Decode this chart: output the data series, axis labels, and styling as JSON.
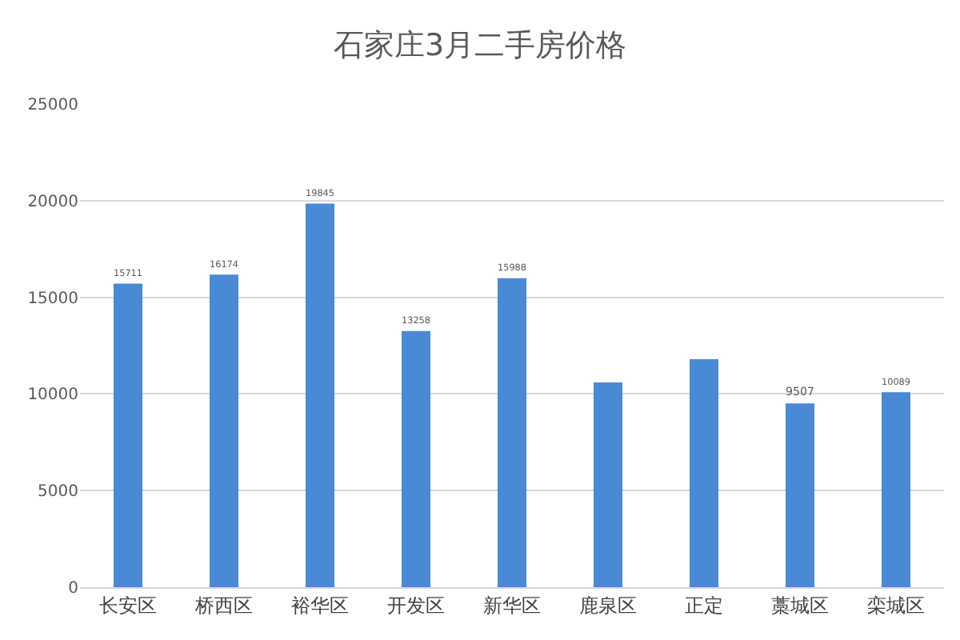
{
  "chart_data": {
    "type": "bar",
    "title": "石家庄3月二手房价格",
    "categories": [
      "长安区",
      "桥西区",
      "裕华区",
      "开发区",
      "新华区",
      "鹿泉区",
      "正定",
      "藁城区",
      "栾城区"
    ],
    "values": [
      15711,
      16174,
      19845,
      13258,
      15988,
      10600,
      11800,
      9507,
      10089
    ],
    "value_labels": [
      "15711",
      "16174",
      "19845",
      "13258",
      "15988",
      null,
      null,
      "9507",
      "10089"
    ],
    "color": "#4a89d6",
    "ylim": [
      0,
      25000
    ],
    "yticks": [
      0,
      5000,
      10000,
      15000,
      20000,
      25000
    ],
    "grid": "y",
    "legend": false
  }
}
